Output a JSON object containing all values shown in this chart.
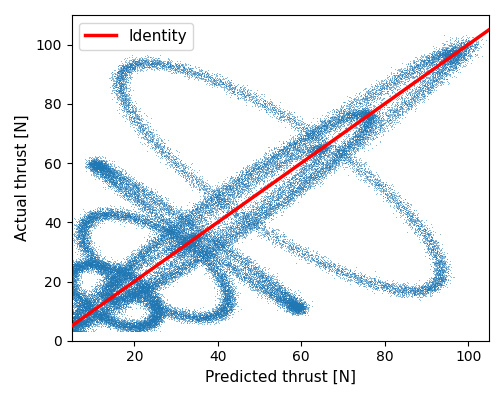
{
  "xlabel": "Predicted thrust [N]",
  "ylabel": "Actual thrust [N]",
  "xlim": [
    5,
    105
  ],
  "ylim": [
    0,
    110
  ],
  "xticks": [
    20,
    40,
    60,
    80,
    100
  ],
  "yticks": [
    0,
    20,
    40,
    60,
    80,
    100
  ],
  "identity_color": "#ff0000",
  "identity_linewidth": 2.5,
  "identity_label": "Identity",
  "scatter_color": "#1f77b4",
  "scatter_alpha": 0.5,
  "scatter_size": 1.2,
  "background_color": "#ffffff",
  "seed": 42
}
